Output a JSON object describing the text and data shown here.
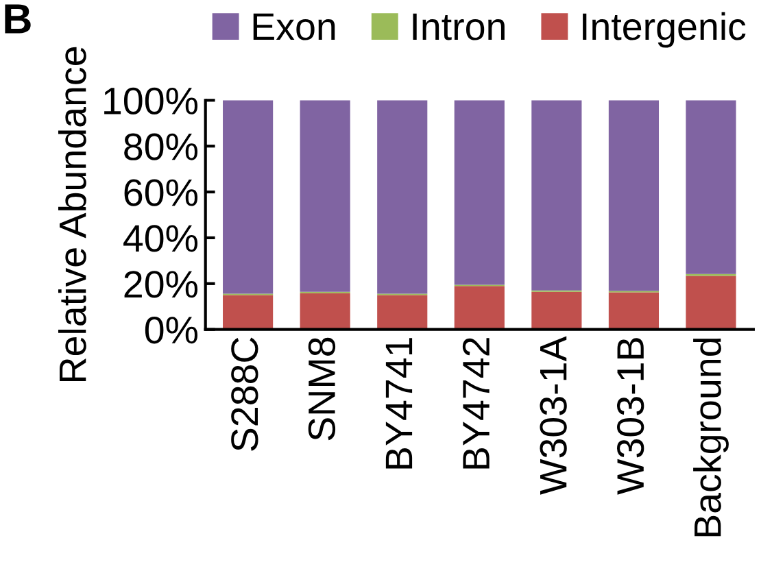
{
  "chart_data": {
    "type": "bar",
    "stacked": true,
    "ylabel": "Relative Abundance",
    "annotations": [
      "B"
    ],
    "categories": [
      "S288C",
      "SNM8",
      "BY4741",
      "BY4742",
      "W303-1A",
      "W303-1B",
      "Background"
    ],
    "series": [
      {
        "name": "Intergenic",
        "color": "#c0504d",
        "values": [
          15.0,
          15.8,
          15.0,
          19.0,
          16.4,
          16.2,
          23.4
        ]
      },
      {
        "name": "Intron",
        "color": "#9bbb59",
        "values": [
          0.6,
          0.6,
          0.6,
          0.5,
          0.6,
          0.6,
          0.8
        ]
      },
      {
        "name": "Exon",
        "color": "#8064a2",
        "values": [
          84.4,
          83.6,
          84.4,
          80.5,
          83.0,
          83.2,
          75.8
        ]
      }
    ],
    "ylim": [
      0,
      100
    ],
    "yticks": [
      {
        "value": 0,
        "label": "0%"
      },
      {
        "value": 20,
        "label": "20%"
      },
      {
        "value": 40,
        "label": "40%"
      },
      {
        "value": 60,
        "label": "60%"
      },
      {
        "value": 80,
        "label": "80%"
      },
      {
        "value": 100,
        "label": "100%"
      }
    ],
    "grid": false,
    "legend": "top"
  }
}
